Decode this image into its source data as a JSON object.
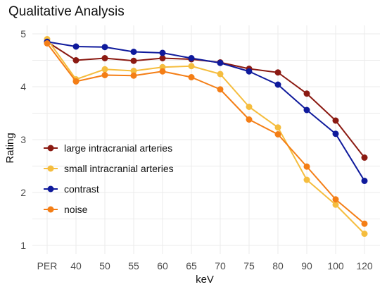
{
  "chart_data": {
    "type": "line",
    "title": "Qualitative Analysis",
    "xlabel": "keV",
    "ylabel": "Rating",
    "categories": [
      "PER",
      "40",
      "50",
      "55",
      "60",
      "65",
      "70",
      "75",
      "80",
      "90",
      "100",
      "120"
    ],
    "yticks": [
      "1",
      "2",
      "3",
      "4",
      "5"
    ],
    "ylim": [
      0.85,
      5.15
    ],
    "grid": true,
    "legend_position": "left-inside-bottom",
    "series": [
      {
        "name": "large intracranial arteries",
        "color": "#8b1a12",
        "values": [
          4.85,
          4.5,
          4.54,
          4.49,
          4.54,
          4.52,
          4.46,
          4.34,
          4.27,
          3.87,
          3.36,
          2.66
        ]
      },
      {
        "name": "small intracranial arteries",
        "color": "#f5bd3e",
        "values": [
          4.9,
          4.14,
          4.33,
          4.3,
          4.37,
          4.39,
          4.24,
          3.62,
          3.23,
          2.24,
          1.77,
          1.22
        ]
      },
      {
        "name": "contrast",
        "color": "#0f1a9c",
        "values": [
          4.85,
          4.76,
          4.75,
          4.66,
          4.64,
          4.54,
          4.45,
          4.29,
          4.04,
          3.56,
          3.11,
          2.22
        ]
      },
      {
        "name": "noise",
        "color": "#f47e16",
        "values": [
          4.82,
          4.1,
          4.22,
          4.21,
          4.29,
          4.18,
          3.95,
          3.38,
          3.1,
          2.49,
          1.87,
          1.41
        ]
      }
    ]
  }
}
